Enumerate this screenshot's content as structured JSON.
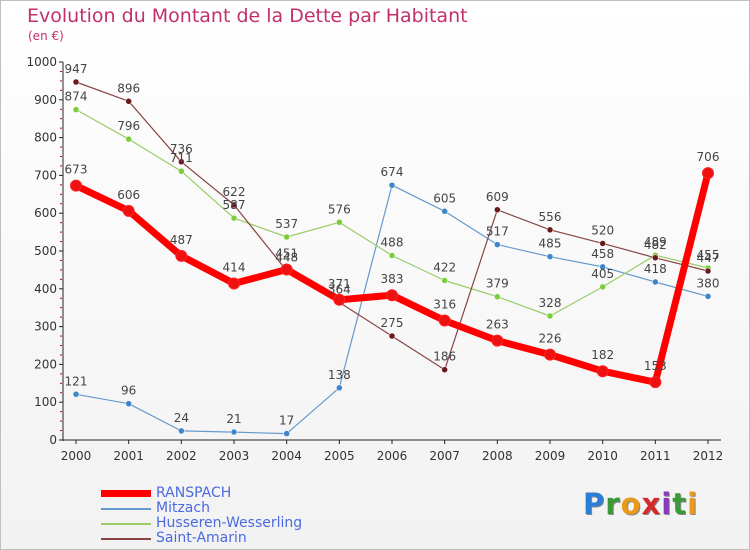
{
  "colors": {
    "title": "#c0306a",
    "legend_text": "#4a6ae0",
    "axis_tick": "#cc0000"
  },
  "logo": {
    "text": "Proxiti",
    "letters": [
      {
        "ch": "P",
        "color": "#2a7fd4"
      },
      {
        "ch": "r",
        "color": "#3a9a3a"
      },
      {
        "ch": "o",
        "color": "#e89a1a"
      },
      {
        "ch": "x",
        "color": "#d62a2a"
      },
      {
        "ch": "i",
        "color": "#8a3ab8"
      },
      {
        "ch": "t",
        "color": "#3a9a3a"
      },
      {
        "ch": "i",
        "color": "#e89a1a"
      }
    ]
  },
  "chart_data": {
    "type": "line",
    "title": "Evolution du Montant de la Dette par Habitant",
    "subtitle": "(en €)",
    "xlabel": "",
    "ylabel": "",
    "x": [
      "2000",
      "2001",
      "2002",
      "2003",
      "2004",
      "2005",
      "2006",
      "2007",
      "2008",
      "2009",
      "2010",
      "2011",
      "2012"
    ],
    "ylim": [
      0,
      1000
    ],
    "y_ticks": [
      "0",
      "100",
      "200",
      "300",
      "400",
      "500",
      "600",
      "700",
      "800",
      "900",
      "1000"
    ],
    "grid": false,
    "legend_position": "bottom-left",
    "series": [
      {
        "name": "RANSPACH",
        "color": "#ff0000",
        "dot_color": "#ee1111",
        "thick": true,
        "values": [
          673,
          606,
          487,
          414,
          451,
          371,
          383,
          316,
          263,
          226,
          182,
          153,
          706
        ]
      },
      {
        "name": "Mitzach",
        "color": "#6699cc",
        "dot_color": "#3f86c8",
        "thick": false,
        "values": [
          121,
          96,
          24,
          21,
          17,
          138,
          674,
          605,
          517,
          485,
          458,
          418,
          380
        ]
      },
      {
        "name": "Husseren-Wesserling",
        "color": "#99cc66",
        "dot_color": "#7ccd3a",
        "thick": false,
        "values": [
          874,
          796,
          711,
          587,
          537,
          576,
          488,
          422,
          379,
          328,
          405,
          489,
          455
        ]
      },
      {
        "name": "Saint-Amarin",
        "color": "#884444",
        "dot_color": "#6b1a1a",
        "thick": false,
        "values": [
          947,
          896,
          736,
          622,
          448,
          364,
          275,
          186,
          609,
          556,
          520,
          482,
          447
        ]
      }
    ]
  }
}
